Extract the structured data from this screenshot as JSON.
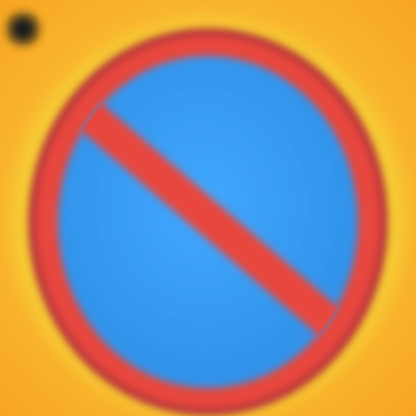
{
  "image": {
    "subject": "no-parking-sign",
    "colors": {
      "background": "#f7a623",
      "background_light": "#ffd447",
      "halo": "#f2e33a",
      "ring": "#e8463c",
      "ring_dark": "#b8383a",
      "disc": "#2f8fe6",
      "disc_light": "#41a8ff",
      "slash": "#e8463c",
      "spot_outer": "#7a5a1e",
      "spot_inner": "#1c1c1c"
    }
  }
}
